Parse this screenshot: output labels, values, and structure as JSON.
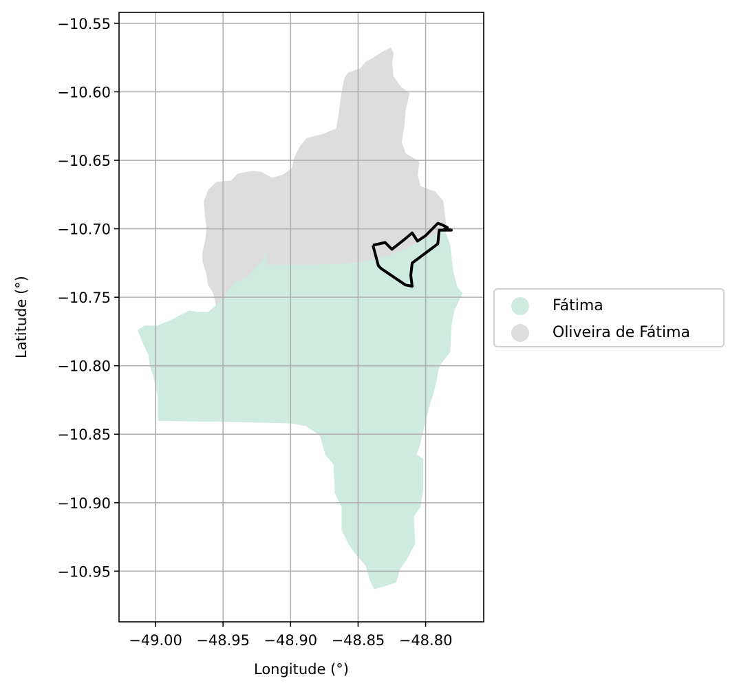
{
  "chart_data": {
    "type": "map",
    "title": "",
    "xlabel": "Longitude (°)",
    "ylabel": "Latitude (°)",
    "xlim": [
      -49.027,
      -48.757
    ],
    "ylim": [
      -10.987,
      -10.542
    ],
    "x_ticks": [
      -49.0,
      -48.95,
      -48.9,
      -48.85,
      -48.8
    ],
    "x_tick_labels": [
      "−49.00",
      "−48.95",
      "−48.90",
      "−48.85",
      "−48.80"
    ],
    "y_ticks": [
      -10.55,
      -10.6,
      -10.65,
      -10.7,
      -10.75,
      -10.8,
      -10.85,
      -10.9,
      -10.95
    ],
    "y_tick_labels": [
      "−10.55",
      "−10.60",
      "−10.65",
      "−10.70",
      "−10.75",
      "−10.80",
      "−10.85",
      "−10.90",
      "−10.95"
    ],
    "grid": true,
    "legend_position": "center-left outside, right of axes",
    "regions": [
      {
        "name": "Fátima",
        "color": "#cfebdf",
        "polygon": [
          [
            -49.013,
            -10.774
          ],
          [
            -49.008,
            -10.771
          ],
          [
            -48.999,
            -10.771
          ],
          [
            -48.991,
            -10.768
          ],
          [
            -48.983,
            -10.764
          ],
          [
            -48.975,
            -10.76
          ],
          [
            -48.969,
            -10.761
          ],
          [
            -48.961,
            -10.761
          ],
          [
            -48.955,
            -10.756
          ],
          [
            -48.948,
            -10.747
          ],
          [
            -48.941,
            -10.739
          ],
          [
            -48.931,
            -10.734
          ],
          [
            -48.922,
            -10.724
          ],
          [
            -48.918,
            -10.717
          ],
          [
            -48.917,
            -10.726
          ],
          [
            -48.9,
            -10.726
          ],
          [
            -48.88,
            -10.726
          ],
          [
            -48.855,
            -10.725
          ],
          [
            -48.832,
            -10.721
          ],
          [
            -48.814,
            -10.714
          ],
          [
            -48.8,
            -10.707
          ],
          [
            -48.786,
            -10.701
          ],
          [
            -48.782,
            -10.712
          ],
          [
            -48.78,
            -10.73
          ],
          [
            -48.777,
            -10.742
          ],
          [
            -48.773,
            -10.747
          ],
          [
            -48.779,
            -10.76
          ],
          [
            -48.781,
            -10.77
          ],
          [
            -48.782,
            -10.79
          ],
          [
            -48.79,
            -10.8
          ],
          [
            -48.793,
            -10.815
          ],
          [
            -48.799,
            -10.835
          ],
          [
            -48.805,
            -10.86
          ],
          [
            -48.807,
            -10.865
          ],
          [
            -48.802,
            -10.868
          ],
          [
            -48.802,
            -10.89
          ],
          [
            -48.804,
            -10.903
          ],
          [
            -48.809,
            -10.91
          ],
          [
            -48.808,
            -10.93
          ],
          [
            -48.814,
            -10.941
          ],
          [
            -48.819,
            -10.948
          ],
          [
            -48.822,
            -10.958
          ],
          [
            -48.831,
            -10.961
          ],
          [
            -48.838,
            -10.963
          ],
          [
            -48.841,
            -10.957
          ],
          [
            -48.844,
            -10.946
          ],
          [
            -48.852,
            -10.937
          ],
          [
            -48.857,
            -10.93
          ],
          [
            -48.862,
            -10.92
          ],
          [
            -48.862,
            -10.903
          ],
          [
            -48.867,
            -10.893
          ],
          [
            -48.868,
            -10.872
          ],
          [
            -48.874,
            -10.865
          ],
          [
            -48.878,
            -10.851
          ],
          [
            -48.888,
            -10.844
          ],
          [
            -48.898,
            -10.842
          ],
          [
            -48.935,
            -10.841
          ],
          [
            -48.998,
            -10.84
          ],
          [
            -48.998,
            -10.823
          ],
          [
            -49.001,
            -10.809
          ],
          [
            -49.004,
            -10.8
          ],
          [
            -49.005,
            -10.792
          ],
          [
            -49.009,
            -10.784
          ]
        ]
      },
      {
        "name": "Oliveira de Fátima",
        "color": "#dddddd",
        "polygon": [
          [
            -48.955,
            -10.756
          ],
          [
            -48.957,
            -10.747
          ],
          [
            -48.961,
            -10.741
          ],
          [
            -48.962,
            -10.733
          ],
          [
            -48.965,
            -10.724
          ],
          [
            -48.965,
            -10.717
          ],
          [
            -48.963,
            -10.709
          ],
          [
            -48.962,
            -10.7
          ],
          [
            -48.963,
            -10.691
          ],
          [
            -48.964,
            -10.68
          ],
          [
            -48.961,
            -10.672
          ],
          [
            -48.955,
            -10.666
          ],
          [
            -48.944,
            -10.665
          ],
          [
            -48.939,
            -10.66
          ],
          [
            -48.928,
            -10.658
          ],
          [
            -48.921,
            -10.659
          ],
          [
            -48.914,
            -10.663
          ],
          [
            -48.906,
            -10.661
          ],
          [
            -48.899,
            -10.656
          ],
          [
            -48.897,
            -10.648
          ],
          [
            -48.893,
            -10.64
          ],
          [
            -48.888,
            -10.634
          ],
          [
            -48.876,
            -10.631
          ],
          [
            -48.866,
            -10.627
          ],
          [
            -48.864,
            -10.615
          ],
          [
            -48.863,
            -10.607
          ],
          [
            -48.86,
            -10.59
          ],
          [
            -48.857,
            -10.586
          ],
          [
            -48.848,
            -10.583
          ],
          [
            -48.844,
            -10.578
          ],
          [
            -48.838,
            -10.575
          ],
          [
            -48.832,
            -10.571
          ],
          [
            -48.826,
            -10.568
          ],
          [
            -48.824,
            -10.572
          ],
          [
            -48.825,
            -10.579
          ],
          [
            -48.824,
            -10.589
          ],
          [
            -48.818,
            -10.597
          ],
          [
            -48.812,
            -10.601
          ],
          [
            -48.815,
            -10.613
          ],
          [
            -48.816,
            -10.625
          ],
          [
            -48.818,
            -10.637
          ],
          [
            -48.815,
            -10.645
          ],
          [
            -48.805,
            -10.651
          ],
          [
            -48.806,
            -10.661
          ],
          [
            -48.804,
            -10.669
          ],
          [
            -48.793,
            -10.673
          ],
          [
            -48.787,
            -10.68
          ],
          [
            -48.786,
            -10.69
          ],
          [
            -48.785,
            -10.697
          ],
          [
            -48.786,
            -10.701
          ],
          [
            -48.8,
            -10.707
          ],
          [
            -48.814,
            -10.714
          ],
          [
            -48.832,
            -10.721
          ],
          [
            -48.855,
            -10.725
          ],
          [
            -48.88,
            -10.726
          ],
          [
            -48.9,
            -10.726
          ],
          [
            -48.917,
            -10.726
          ],
          [
            -48.918,
            -10.717
          ],
          [
            -48.922,
            -10.724
          ],
          [
            -48.931,
            -10.734
          ],
          [
            -48.941,
            -10.739
          ],
          [
            -48.948,
            -10.747
          ]
        ]
      }
    ],
    "outline": {
      "color": "#000000",
      "polyline": [
        [
          -48.839,
          -10.712
        ],
        [
          -48.83,
          -10.71
        ],
        [
          -48.825,
          -10.715
        ],
        [
          -48.816,
          -10.708
        ],
        [
          -48.81,
          -10.703
        ],
        [
          -48.806,
          -10.709
        ],
        [
          -48.803,
          -10.707
        ],
        [
          -48.8,
          -10.705
        ],
        [
          -48.796,
          -10.701
        ],
        [
          -48.791,
          -10.696
        ],
        [
          -48.788,
          -10.697
        ],
        [
          -48.784,
          -10.699
        ],
        [
          -48.786,
          -10.7
        ],
        [
          -48.781,
          -10.701
        ],
        [
          -48.79,
          -10.701
        ],
        [
          -48.791,
          -10.711
        ],
        [
          -48.81,
          -10.725
        ],
        [
          -48.811,
          -10.734
        ],
        [
          -48.81,
          -10.742
        ],
        [
          -48.815,
          -10.741
        ],
        [
          -48.833,
          -10.729
        ],
        [
          -48.835,
          -10.727
        ],
        [
          -48.839,
          -10.712
        ]
      ]
    }
  },
  "legend": {
    "items": [
      {
        "label": "Fátima",
        "color": "#cfebdf"
      },
      {
        "label": "Oliveira de Fátima",
        "color": "#dddddd"
      }
    ]
  }
}
